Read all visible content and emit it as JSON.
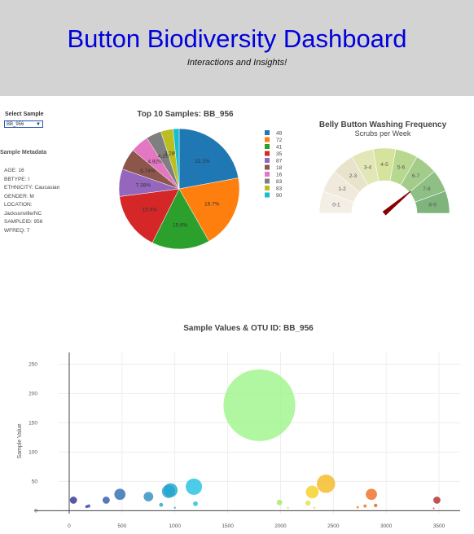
{
  "header": {
    "title": "Button Biodiversity Dashboard",
    "subtitle": "Interactions and Insights!"
  },
  "selector": {
    "label": "Select Sample",
    "value": "BB_956",
    "arrow_icon": "triangle-down-icon"
  },
  "metadata": {
    "title": "Sample Metadata",
    "lines": [
      "AGE: 16",
      "BBTYPE: I",
      "ETHNICITY: Caucasian",
      "GENDER: M",
      "LOCATION:",
      "Jacksonville/NC",
      "SAMPLEID: 956",
      "WFREQ: 7"
    ]
  },
  "chart_data": [
    {
      "type": "pie",
      "title": "Top 10 Samples: BB_956",
      "labels": [
        "48",
        "72",
        "41",
        "35",
        "87",
        "18",
        "16",
        "83",
        "83",
        "90"
      ],
      "values": [
        22.1,
        19.7,
        15.6,
        15.6,
        7.38,
        5.74,
        4.92,
        4.1,
        3.28,
        1.64
      ],
      "value_labels": [
        "22.1%",
        "19.7%",
        "15.6%",
        "15.6%",
        "7.38%",
        "5.74%",
        "4.92%",
        "4.1%",
        "3.28%",
        "1.64%"
      ],
      "colors": [
        "#1f77b4",
        "#ff7f0e",
        "#2ca02c",
        "#d62728",
        "#9467bd",
        "#8c564b",
        "#e377c2",
        "#7f7f7f",
        "#bcbd22",
        "#17becf"
      ],
      "legend_position": "right"
    },
    {
      "type": "gauge",
      "title": "Belly Button Washing Frequency",
      "subtitle": "Scrubs per Week",
      "sector_labels": [
        "0-1",
        "1-2",
        "2-3",
        "3-4",
        "4-5",
        "5-6",
        "6-7",
        "7-8",
        "8-9"
      ],
      "sector_colors": [
        "#f3efe5",
        "#efeadb",
        "#e8e4cc",
        "#e3e7b8",
        "#d6e39c",
        "#b9d88f",
        "#a3cc8a",
        "#8ebf85",
        "#7fb47c"
      ],
      "range": [
        0,
        9
      ],
      "needle_value": 7,
      "needle_color": "#850000"
    },
    {
      "type": "scatter",
      "title": "Sample Values & OTU ID: BB_956",
      "ylabel": "Sample Value",
      "xlabel": "",
      "xlim": [
        -100,
        3700
      ],
      "ylim": [
        -5,
        270
      ],
      "x_ticks": [
        "0",
        "500",
        "1000",
        "1500",
        "2000",
        "2500",
        "3000",
        "3500"
      ],
      "y_ticks": [
        "0",
        "50",
        "100",
        "150",
        "200",
        "250"
      ],
      "grid": true,
      "points": [
        {
          "x": 40,
          "y": 18,
          "color": "#2b2f8f"
        },
        {
          "x": 165,
          "y": 7,
          "color": "#3040a0"
        },
        {
          "x": 185,
          "y": 8,
          "color": "#3248a8"
        },
        {
          "x": 350,
          "y": 18,
          "color": "#2f55a8"
        },
        {
          "x": 480,
          "y": 28,
          "color": "#2a6ab0"
        },
        {
          "x": 750,
          "y": 24,
          "color": "#2b8cbf"
        },
        {
          "x": 870,
          "y": 10,
          "color": "#2aa0c8"
        },
        {
          "x": 940,
          "y": 33,
          "color": "#2a9ac5"
        },
        {
          "x": 960,
          "y": 35,
          "color": "#1fa7cf"
        },
        {
          "x": 1000,
          "y": 5,
          "color": "#20b0d0"
        },
        {
          "x": 1180,
          "y": 41,
          "color": "#1fbfe0"
        },
        {
          "x": 1195,
          "y": 12,
          "color": "#20c0d8"
        },
        {
          "x": 1800,
          "y": 180,
          "color": "#9ef58a"
        },
        {
          "x": 1990,
          "y": 14,
          "color": "#a8e860"
        },
        {
          "x": 2070,
          "y": 5,
          "color": "#b8e860"
        },
        {
          "x": 2260,
          "y": 13,
          "color": "#e0e040"
        },
        {
          "x": 2300,
          "y": 32,
          "color": "#f5d020"
        },
        {
          "x": 2320,
          "y": 5,
          "color": "#f0d830"
        },
        {
          "x": 2430,
          "y": 46,
          "color": "#f5b820"
        },
        {
          "x": 2730,
          "y": 6,
          "color": "#f08020"
        },
        {
          "x": 2800,
          "y": 8,
          "color": "#f07020"
        },
        {
          "x": 2860,
          "y": 28,
          "color": "#ef6a20"
        },
        {
          "x": 2900,
          "y": 9,
          "color": "#e86020"
        },
        {
          "x": 3450,
          "y": 4,
          "color": "#c03030"
        },
        {
          "x": 3480,
          "y": 18,
          "color": "#b02a2a"
        }
      ]
    }
  ]
}
